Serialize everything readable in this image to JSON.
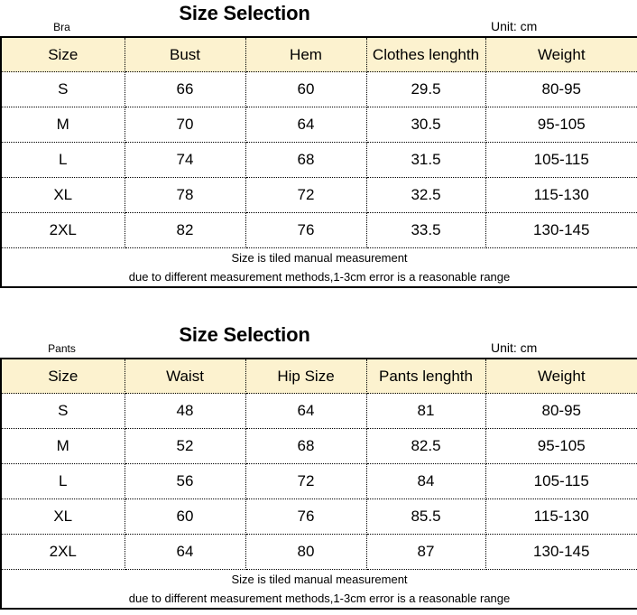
{
  "page_title": "Size Selection",
  "colors": {
    "header_bg": "#fcf2cf",
    "border": "#000000",
    "text": "#000000",
    "background": "#ffffff"
  },
  "chart_data": [
    {
      "type": "table",
      "label": "Bra",
      "title": "Size Selection",
      "unit": "Unit: cm",
      "columns": [
        "Size",
        "Bust",
        "Hem",
        "Clothes lenghth",
        "Weight"
      ],
      "rows": [
        [
          "S",
          "66",
          "60",
          "29.5",
          "80-95"
        ],
        [
          "M",
          "70",
          "64",
          "30.5",
          "95-105"
        ],
        [
          "L",
          "74",
          "68",
          "31.5",
          "105-115"
        ],
        [
          "XL",
          "78",
          "72",
          "32.5",
          "115-130"
        ],
        [
          "2XL",
          "82",
          "76",
          "33.5",
          "130-145"
        ]
      ],
      "footnotes": [
        "Size is tiled manual measurement",
        "due to different measurement methods,1-3cm error is a reasonable range"
      ]
    },
    {
      "type": "table",
      "label": "Pants",
      "title": "Size Selection",
      "unit": "Unit: cm",
      "columns": [
        "Size",
        "Waist",
        "Hip Size",
        "Pants lenghth",
        "Weight"
      ],
      "rows": [
        [
          "S",
          "48",
          "64",
          "81",
          "80-95"
        ],
        [
          "M",
          "52",
          "68",
          "82.5",
          "95-105"
        ],
        [
          "L",
          "56",
          "72",
          "84",
          "105-115"
        ],
        [
          "XL",
          "60",
          "76",
          "85.5",
          "115-130"
        ],
        [
          "2XL",
          "64",
          "80",
          "87",
          "130-145"
        ]
      ],
      "footnotes": [
        "Size is tiled manual measurement",
        "due to different measurement methods,1-3cm error is a reasonable range"
      ]
    }
  ]
}
